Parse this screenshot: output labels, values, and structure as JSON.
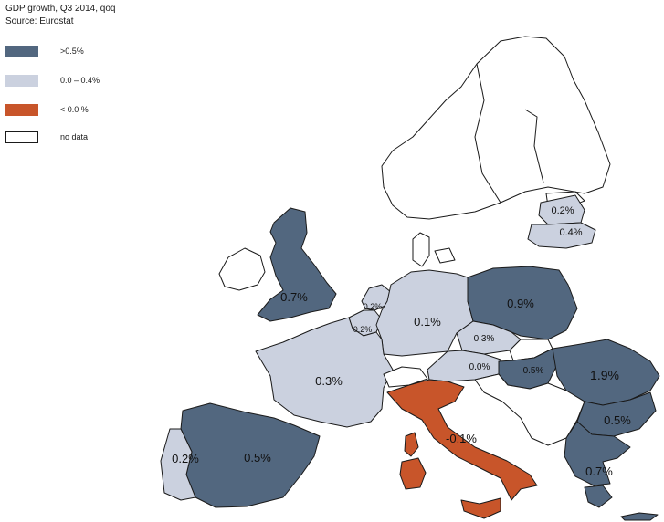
{
  "header": {
    "title": "GDP growth, Q3 2014, qoq",
    "source": "Source: Eurostat"
  },
  "legend": [
    {
      "label": ">0.5%",
      "color": "#52677f"
    },
    {
      "label": "0.0 – 0.4%",
      "color": "#cbd1df"
    },
    {
      "label": "< 0.0 %",
      "color": "#c8552a"
    },
    {
      "label": "no data",
      "color": "#ffffff"
    }
  ],
  "colors": {
    "above": "#52677f",
    "mid": "#cbd1df",
    "negative": "#c8552a",
    "nodata": "#ffffff",
    "border": "#1a1a1a"
  },
  "regions": {
    "uk": "0.7%",
    "germany": "0.1%",
    "france": "0.3%",
    "spain": "0.5%",
    "portugal": "0.2%",
    "italy": "-0.1%",
    "poland": "0.9%",
    "czech": "0.3%",
    "austria": "0.0%",
    "hungary": "0.5%",
    "romania": "1.9%",
    "bulgaria": "0.5%",
    "greece": "0.7%",
    "latvia": "0.2%",
    "lithuania": "0.4%",
    "netherlands": "0.2%",
    "belgium": "0.2%"
  }
}
